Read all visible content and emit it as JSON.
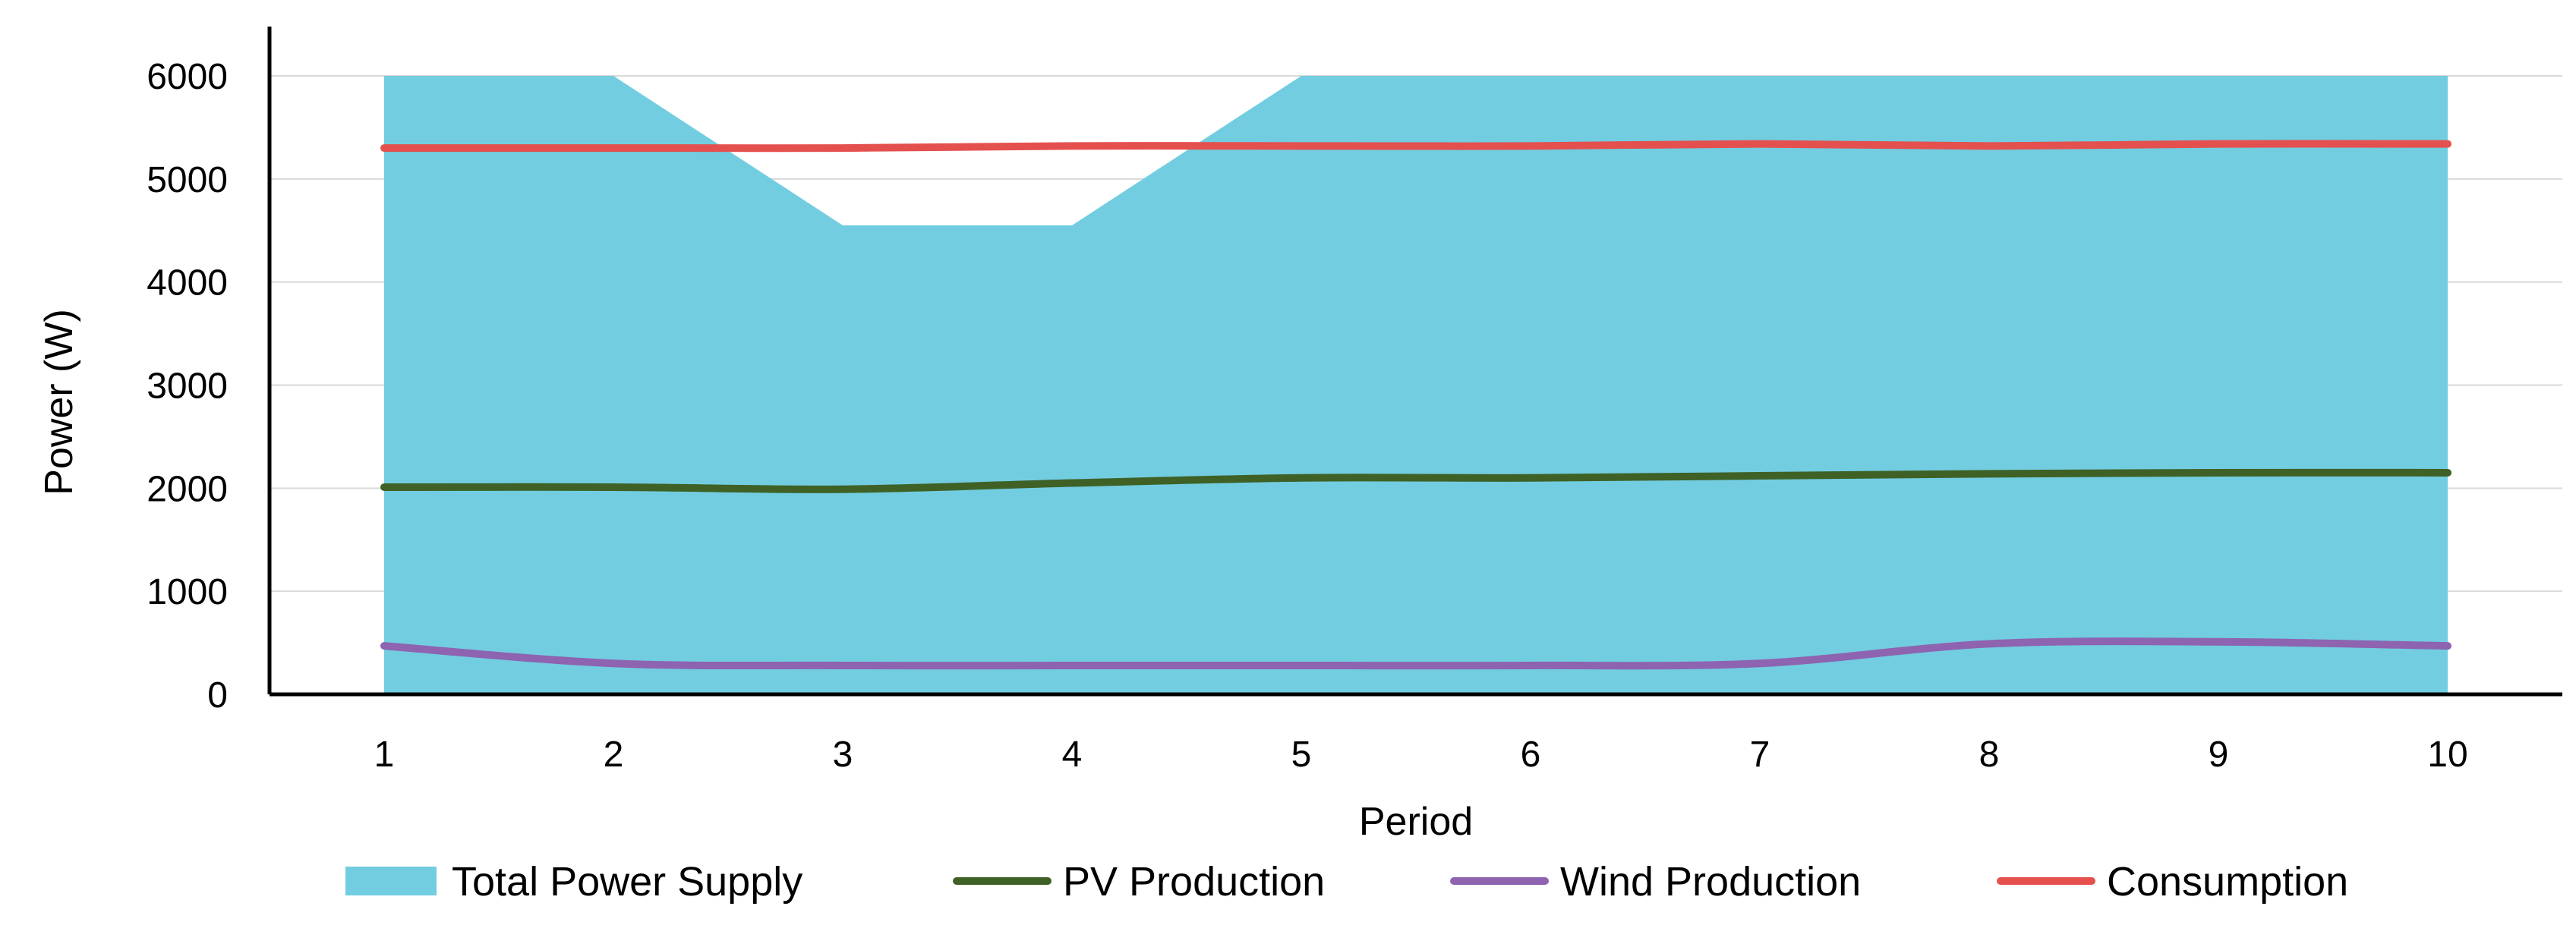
{
  "chart_data": {
    "type": "area",
    "title": "",
    "xlabel": "Period",
    "ylabel": "Power (W)",
    "x": [
      1,
      2,
      3,
      4,
      5,
      6,
      7,
      8,
      9,
      10
    ],
    "xlim": [
      0.5,
      10.5
    ],
    "ylim": [
      0,
      6000
    ],
    "yticks": [
      0,
      1000,
      2000,
      3000,
      4000,
      5000,
      6000
    ],
    "grid": true,
    "legend_position": "bottom",
    "series": [
      {
        "name": "Total Power Supply",
        "type": "area",
        "color": "#72CDE0",
        "values": [
          6000,
          6000,
          4550,
          4550,
          6000,
          6000,
          6000,
          6000,
          6000,
          6000
        ]
      },
      {
        "name": "PV Production",
        "type": "line",
        "color": "#3F6126",
        "values": [
          2010,
          2010,
          1990,
          2050,
          2100,
          2100,
          2120,
          2140,
          2150,
          2150
        ]
      },
      {
        "name": "Wind Production",
        "type": "line",
        "color": "#8E63B0",
        "values": [
          470,
          300,
          280,
          280,
          280,
          280,
          300,
          490,
          510,
          470
        ]
      },
      {
        "name": "Consumption",
        "type": "line",
        "color": "#E4504E",
        "values": [
          5300,
          5300,
          5300,
          5320,
          5320,
          5320,
          5340,
          5320,
          5340,
          5340
        ]
      }
    ]
  }
}
